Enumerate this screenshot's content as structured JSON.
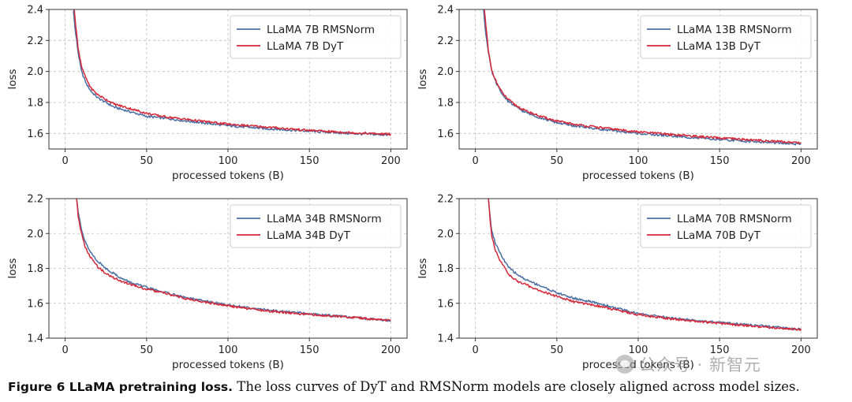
{
  "chart_data": [
    {
      "type": "line",
      "title": "",
      "xlabel": "processed tokens (B)",
      "ylabel": "loss",
      "xlim": [
        -10,
        210
      ],
      "ylim": [
        1.5,
        2.4
      ],
      "xticks": [
        0,
        50,
        100,
        150,
        200
      ],
      "yticks": [
        1.6,
        1.8,
        2.0,
        2.2,
        2.4
      ],
      "grid": true,
      "legend_position": "top-right",
      "series": [
        {
          "name": "LLaMA 7B RMSNorm",
          "color": "#4a6fa5",
          "x": [
            5,
            6,
            8,
            10,
            13,
            16,
            20,
            25,
            30,
            40,
            50,
            60,
            75,
            100,
            125,
            150,
            175,
            200
          ],
          "y": [
            2.4,
            2.28,
            2.12,
            2.0,
            1.92,
            1.87,
            1.83,
            1.8,
            1.77,
            1.74,
            1.71,
            1.7,
            1.68,
            1.65,
            1.63,
            1.615,
            1.6,
            1.59
          ]
        },
        {
          "name": "LLaMA 7B DyT",
          "color": "#d62839",
          "x": [
            5.5,
            6.5,
            8,
            10,
            13,
            16,
            20,
            25,
            30,
            40,
            50,
            60,
            75,
            100,
            125,
            150,
            175,
            200
          ],
          "y": [
            2.4,
            2.3,
            2.15,
            2.03,
            1.95,
            1.89,
            1.85,
            1.82,
            1.79,
            1.76,
            1.73,
            1.71,
            1.69,
            1.66,
            1.64,
            1.62,
            1.605,
            1.595
          ]
        }
      ]
    },
    {
      "type": "line",
      "title": "",
      "xlabel": "processed tokens (B)",
      "ylabel": "loss",
      "xlim": [
        -10,
        210
      ],
      "ylim": [
        1.5,
        2.4
      ],
      "xticks": [
        0,
        50,
        100,
        150,
        200
      ],
      "yticks": [
        1.6,
        1.8,
        2.0,
        2.2,
        2.4
      ],
      "grid": true,
      "legend_position": "top-right",
      "series": [
        {
          "name": "LLaMA 13B RMSNorm",
          "color": "#4a6fa5",
          "x": [
            5,
            6,
            8,
            10,
            13,
            16,
            20,
            25,
            30,
            40,
            50,
            60,
            75,
            100,
            125,
            150,
            175,
            200
          ],
          "y": [
            2.4,
            2.28,
            2.12,
            2.0,
            1.92,
            1.86,
            1.81,
            1.77,
            1.74,
            1.7,
            1.67,
            1.65,
            1.63,
            1.6,
            1.58,
            1.56,
            1.545,
            1.53
          ]
        },
        {
          "name": "LLaMA 13B DyT",
          "color": "#d62839",
          "x": [
            5.5,
            6.5,
            8,
            10,
            13,
            16,
            20,
            25,
            30,
            40,
            50,
            60,
            75,
            100,
            125,
            150,
            175,
            200
          ],
          "y": [
            2.4,
            2.29,
            2.13,
            2.01,
            1.93,
            1.87,
            1.82,
            1.78,
            1.75,
            1.71,
            1.68,
            1.66,
            1.64,
            1.61,
            1.59,
            1.57,
            1.555,
            1.54
          ]
        }
      ]
    },
    {
      "type": "line",
      "title": "",
      "xlabel": "processed tokens (B)",
      "ylabel": "loss",
      "xlim": [
        -10,
        210
      ],
      "ylim": [
        1.4,
        2.2
      ],
      "xticks": [
        0,
        50,
        100,
        150,
        200
      ],
      "yticks": [
        1.4,
        1.6,
        1.8,
        2.0,
        2.2
      ],
      "grid": true,
      "legend_position": "top-right",
      "series": [
        {
          "name": "LLaMA 34B RMSNorm",
          "color": "#4a6fa5",
          "x": [
            7,
            8,
            10,
            12,
            15,
            20,
            25,
            30,
            35,
            40,
            50,
            60,
            75,
            100,
            125,
            150,
            175,
            200
          ],
          "y": [
            2.2,
            2.12,
            2.02,
            1.96,
            1.9,
            1.84,
            1.8,
            1.77,
            1.74,
            1.72,
            1.69,
            1.665,
            1.63,
            1.59,
            1.56,
            1.54,
            1.52,
            1.5
          ]
        },
        {
          "name": "LLaMA 34B DyT",
          "color": "#d62839",
          "x": [
            7,
            8,
            10,
            12,
            15,
            20,
            25,
            30,
            35,
            40,
            50,
            60,
            75,
            100,
            125,
            150,
            175,
            200
          ],
          "y": [
            2.2,
            2.1,
            2.0,
            1.93,
            1.87,
            1.81,
            1.77,
            1.745,
            1.725,
            1.71,
            1.68,
            1.66,
            1.625,
            1.585,
            1.555,
            1.535,
            1.52,
            1.5
          ]
        }
      ]
    },
    {
      "type": "line",
      "title": "",
      "xlabel": "processed tokens (B)",
      "ylabel": "loss",
      "xlim": [
        -10,
        210
      ],
      "ylim": [
        1.4,
        2.2
      ],
      "xticks": [
        0,
        50,
        100,
        150,
        200
      ],
      "yticks": [
        1.4,
        1.6,
        1.8,
        2.0,
        2.2
      ],
      "grid": true,
      "legend_position": "top-right",
      "series": [
        {
          "name": "LLaMA 70B RMSNorm",
          "color": "#4a6fa5",
          "x": [
            8,
            9,
            10,
            12,
            15,
            18,
            20,
            25,
            30,
            40,
            50,
            60,
            75,
            100,
            125,
            150,
            175,
            200
          ],
          "y": [
            2.2,
            2.1,
            2.02,
            1.95,
            1.89,
            1.84,
            1.81,
            1.77,
            1.74,
            1.7,
            1.66,
            1.63,
            1.6,
            1.54,
            1.51,
            1.49,
            1.47,
            1.45
          ]
        },
        {
          "name": "LLaMA 70B DyT",
          "color": "#d62839",
          "x": [
            8,
            9,
            10,
            12,
            15,
            18,
            20,
            25,
            30,
            40,
            50,
            60,
            75,
            100,
            125,
            150,
            175,
            200
          ],
          "y": [
            2.2,
            2.08,
            1.99,
            1.91,
            1.85,
            1.8,
            1.77,
            1.73,
            1.71,
            1.67,
            1.64,
            1.61,
            1.585,
            1.535,
            1.505,
            1.485,
            1.465,
            1.45
          ]
        }
      ]
    }
  ],
  "caption": {
    "label": "Figure 6  LLaMA pretraining loss.",
    "text": " The loss curves of DyT and RMSNorm models are closely aligned across model sizes."
  },
  "watermark": {
    "text": "公众号 · 新智元"
  }
}
